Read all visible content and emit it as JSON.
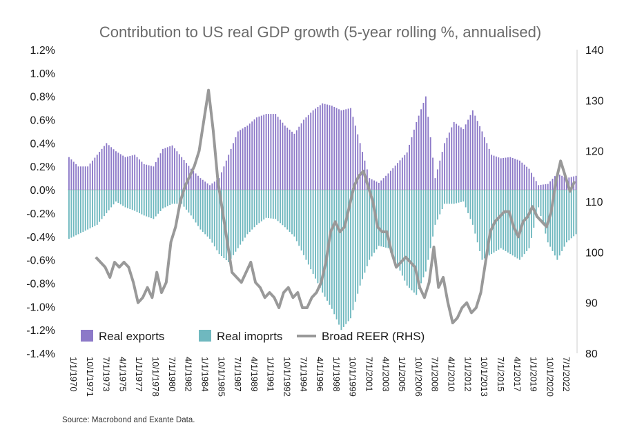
{
  "chart_data": {
    "type": "bar",
    "title": "Contribution to US real GDP growth (5-year rolling %, annualised)",
    "source": "Source: Macrobond and Exante Data.",
    "y_left": {
      "ylim": [
        -1.4,
        1.2
      ],
      "ticks": [
        1.2,
        1.0,
        0.8,
        0.6,
        0.4,
        0.2,
        0.0,
        -0.2,
        -0.4,
        -0.6,
        -0.8,
        -1.0,
        -1.2,
        -1.4
      ],
      "tick_labels": [
        "1.2%",
        "1.0%",
        "0.8%",
        "0.6%",
        "0.4%",
        "0.2%",
        "0.0%",
        "-0.2%",
        "-0.4%",
        "-0.6%",
        "-0.8%",
        "-1.0%",
        "-1.2%",
        "-1.4%"
      ]
    },
    "y_right": {
      "ylim": [
        80,
        140
      ],
      "ticks": [
        140,
        130,
        120,
        110,
        100,
        90,
        80
      ],
      "tick_labels": [
        "140",
        "130",
        "120",
        "110",
        "100",
        "90",
        "80"
      ]
    },
    "x_range": [
      1970.0,
      2024.25
    ],
    "x_ticks": [
      {
        "value": 1970.0,
        "label": "1/1/1970"
      },
      {
        "value": 1971.75,
        "label": "10/1/1971"
      },
      {
        "value": 1973.5,
        "label": "7/1/1973"
      },
      {
        "value": 1975.25,
        "label": "4/1/1975"
      },
      {
        "value": 1977.0,
        "label": "1/1/1977"
      },
      {
        "value": 1978.75,
        "label": "10/1/1978"
      },
      {
        "value": 1980.5,
        "label": "7/1/1980"
      },
      {
        "value": 1982.25,
        "label": "4/1/1982"
      },
      {
        "value": 1984.0,
        "label": "1/1/1984"
      },
      {
        "value": 1985.75,
        "label": "10/1/1985"
      },
      {
        "value": 1987.5,
        "label": "7/1/1987"
      },
      {
        "value": 1989.25,
        "label": "4/1/1989"
      },
      {
        "value": 1991.0,
        "label": "1/1/1991"
      },
      {
        "value": 1992.75,
        "label": "10/1/1992"
      },
      {
        "value": 1994.5,
        "label": "7/1/1994"
      },
      {
        "value": 1996.25,
        "label": "4/1/1996"
      },
      {
        "value": 1998.0,
        "label": "1/1/1998"
      },
      {
        "value": 1999.75,
        "label": "10/1/1999"
      },
      {
        "value": 2001.5,
        "label": "7/1/2001"
      },
      {
        "value": 2003.25,
        "label": "4/1/2003"
      },
      {
        "value": 2005.0,
        "label": "1/1/2005"
      },
      {
        "value": 2006.75,
        "label": "10/1/2006"
      },
      {
        "value": 2008.5,
        "label": "7/1/2008"
      },
      {
        "value": 2010.25,
        "label": "4/1/2010"
      },
      {
        "value": 2012.0,
        "label": "1/1/2012"
      },
      {
        "value": 2013.75,
        "label": "10/1/2013"
      },
      {
        "value": 2015.5,
        "label": "7/1/2015"
      },
      {
        "value": 2017.25,
        "label": "4/1/2017"
      },
      {
        "value": 2019.0,
        "label": "1/1/2019"
      },
      {
        "value": 2020.75,
        "label": "10/1/2020"
      },
      {
        "value": 2022.5,
        "label": "7/1/2022"
      }
    ],
    "series": [
      {
        "name": "Real exports",
        "type": "bar",
        "axis": "left",
        "color": "#8c79c8",
        "points": [
          [
            1970.0,
            0.28
          ],
          [
            1971.0,
            0.2
          ],
          [
            1972.0,
            0.2
          ],
          [
            1973.0,
            0.3
          ],
          [
            1974.0,
            0.4
          ],
          [
            1975.0,
            0.33
          ],
          [
            1976.0,
            0.28
          ],
          [
            1977.0,
            0.3
          ],
          [
            1978.0,
            0.22
          ],
          [
            1979.0,
            0.2
          ],
          [
            1980.0,
            0.35
          ],
          [
            1981.0,
            0.38
          ],
          [
            1982.0,
            0.28
          ],
          [
            1983.0,
            0.18
          ],
          [
            1984.0,
            0.1
          ],
          [
            1985.0,
            0.04
          ],
          [
            1986.0,
            0.1
          ],
          [
            1987.0,
            0.3
          ],
          [
            1988.0,
            0.5
          ],
          [
            1989.0,
            0.55
          ],
          [
            1990.0,
            0.62
          ],
          [
            1991.0,
            0.65
          ],
          [
            1992.0,
            0.65
          ],
          [
            1993.0,
            0.55
          ],
          [
            1994.0,
            0.48
          ],
          [
            1995.0,
            0.6
          ],
          [
            1996.0,
            0.68
          ],
          [
            1997.0,
            0.74
          ],
          [
            1998.0,
            0.72
          ],
          [
            1999.0,
            0.68
          ],
          [
            2000.0,
            0.7
          ],
          [
            2001.0,
            0.4
          ],
          [
            2002.0,
            0.1
          ],
          [
            2003.0,
            0.06
          ],
          [
            2004.0,
            0.14
          ],
          [
            2005.0,
            0.23
          ],
          [
            2006.0,
            0.32
          ],
          [
            2007.0,
            0.58
          ],
          [
            2008.0,
            0.8
          ],
          [
            2009.0,
            0.1
          ],
          [
            2010.0,
            0.4
          ],
          [
            2011.0,
            0.58
          ],
          [
            2012.0,
            0.52
          ],
          [
            2013.0,
            0.68
          ],
          [
            2014.0,
            0.5
          ],
          [
            2015.0,
            0.3
          ],
          [
            2016.0,
            0.27
          ],
          [
            2017.0,
            0.28
          ],
          [
            2018.0,
            0.25
          ],
          [
            2019.0,
            0.18
          ],
          [
            2020.0,
            0.04
          ],
          [
            2021.0,
            0.05
          ],
          [
            2022.0,
            0.14
          ],
          [
            2023.0,
            0.1
          ],
          [
            2024.0,
            0.12
          ]
        ]
      },
      {
        "name": "Real imoprts",
        "type": "bar",
        "axis": "left",
        "color": "#6fb8bf",
        "points": [
          [
            1970.0,
            -0.42
          ],
          [
            1971.0,
            -0.38
          ],
          [
            1972.0,
            -0.34
          ],
          [
            1973.0,
            -0.3
          ],
          [
            1974.0,
            -0.2
          ],
          [
            1975.0,
            -0.1
          ],
          [
            1976.0,
            -0.15
          ],
          [
            1977.0,
            -0.18
          ],
          [
            1978.0,
            -0.22
          ],
          [
            1979.0,
            -0.25
          ],
          [
            1980.0,
            -0.16
          ],
          [
            1981.0,
            -0.12
          ],
          [
            1982.0,
            -0.12
          ],
          [
            1983.0,
            -0.22
          ],
          [
            1984.0,
            -0.34
          ],
          [
            1985.0,
            -0.42
          ],
          [
            1986.0,
            -0.55
          ],
          [
            1987.0,
            -0.62
          ],
          [
            1988.0,
            -0.5
          ],
          [
            1989.0,
            -0.38
          ],
          [
            1990.0,
            -0.3
          ],
          [
            1991.0,
            -0.24
          ],
          [
            1992.0,
            -0.25
          ],
          [
            1993.0,
            -0.32
          ],
          [
            1994.0,
            -0.4
          ],
          [
            1995.0,
            -0.56
          ],
          [
            1996.0,
            -0.72
          ],
          [
            1997.0,
            -0.88
          ],
          [
            1998.0,
            -1.02
          ],
          [
            1999.0,
            -1.2
          ],
          [
            2000.0,
            -1.1
          ],
          [
            2001.0,
            -0.82
          ],
          [
            2002.0,
            -0.6
          ],
          [
            2003.0,
            -0.48
          ],
          [
            2004.0,
            -0.5
          ],
          [
            2005.0,
            -0.65
          ],
          [
            2006.0,
            -0.82
          ],
          [
            2007.0,
            -0.9
          ],
          [
            2008.0,
            -0.7
          ],
          [
            2009.0,
            -0.3
          ],
          [
            2010.0,
            -0.12
          ],
          [
            2011.0,
            -0.12
          ],
          [
            2012.0,
            -0.1
          ],
          [
            2013.0,
            -0.3
          ],
          [
            2014.0,
            -0.6
          ],
          [
            2015.0,
            -0.55
          ],
          [
            2016.0,
            -0.5
          ],
          [
            2017.0,
            -0.55
          ],
          [
            2018.0,
            -0.6
          ],
          [
            2019.0,
            -0.5
          ],
          [
            2020.0,
            -0.15
          ],
          [
            2021.0,
            -0.45
          ],
          [
            2022.0,
            -0.6
          ],
          [
            2023.0,
            -0.45
          ],
          [
            2024.0,
            -0.38
          ]
        ]
      },
      {
        "name": "Broad REER (RHS)",
        "type": "line",
        "axis": "right",
        "color": "#999999",
        "points": [
          [
            1973.0,
            99
          ],
          [
            1973.5,
            98
          ],
          [
            1974.0,
            97
          ],
          [
            1974.5,
            95
          ],
          [
            1975.0,
            98
          ],
          [
            1975.5,
            97
          ],
          [
            1976.0,
            98
          ],
          [
            1976.5,
            97
          ],
          [
            1977.0,
            94
          ],
          [
            1977.5,
            90
          ],
          [
            1978.0,
            91
          ],
          [
            1978.5,
            93
          ],
          [
            1979.0,
            91
          ],
          [
            1979.5,
            96
          ],
          [
            1980.0,
            92
          ],
          [
            1980.5,
            94
          ],
          [
            1981.0,
            102
          ],
          [
            1981.5,
            105
          ],
          [
            1982.0,
            110
          ],
          [
            1982.5,
            113
          ],
          [
            1983.0,
            115
          ],
          [
            1983.5,
            117
          ],
          [
            1984.0,
            120
          ],
          [
            1984.5,
            126
          ],
          [
            1985.0,
            132
          ],
          [
            1985.5,
            124
          ],
          [
            1986.0,
            114
          ],
          [
            1986.5,
            108
          ],
          [
            1987.0,
            102
          ],
          [
            1987.5,
            96
          ],
          [
            1988.0,
            95
          ],
          [
            1988.5,
            94
          ],
          [
            1989.0,
            96
          ],
          [
            1989.5,
            98
          ],
          [
            1990.0,
            94
          ],
          [
            1990.5,
            93
          ],
          [
            1991.0,
            91
          ],
          [
            1991.5,
            92
          ],
          [
            1992.0,
            91
          ],
          [
            1992.5,
            89
          ],
          [
            1993.0,
            92
          ],
          [
            1993.5,
            93
          ],
          [
            1994.0,
            91
          ],
          [
            1994.5,
            92
          ],
          [
            1995.0,
            89
          ],
          [
            1995.5,
            89
          ],
          [
            1996.0,
            91
          ],
          [
            1996.5,
            92
          ],
          [
            1997.0,
            94
          ],
          [
            1997.5,
            98
          ],
          [
            1998.0,
            104
          ],
          [
            1998.5,
            106
          ],
          [
            1999.0,
            104
          ],
          [
            1999.5,
            105
          ],
          [
            2000.0,
            109
          ],
          [
            2000.5,
            113
          ],
          [
            2001.0,
            115
          ],
          [
            2001.5,
            116
          ],
          [
            2002.0,
            113
          ],
          [
            2002.5,
            110
          ],
          [
            2003.0,
            105
          ],
          [
            2003.5,
            104
          ],
          [
            2004.0,
            104
          ],
          [
            2004.5,
            100
          ],
          [
            2005.0,
            97
          ],
          [
            2005.5,
            98
          ],
          [
            2006.0,
            99
          ],
          [
            2006.5,
            98
          ],
          [
            2007.0,
            97
          ],
          [
            2007.5,
            93
          ],
          [
            2008.0,
            91
          ],
          [
            2008.5,
            94
          ],
          [
            2009.0,
            101
          ],
          [
            2009.5,
            93
          ],
          [
            2010.0,
            95
          ],
          [
            2010.5,
            90
          ],
          [
            2011.0,
            86
          ],
          [
            2011.5,
            87
          ],
          [
            2012.0,
            89
          ],
          [
            2012.5,
            90
          ],
          [
            2013.0,
            88
          ],
          [
            2013.5,
            89
          ],
          [
            2014.0,
            92
          ],
          [
            2014.5,
            98
          ],
          [
            2015.0,
            104
          ],
          [
            2015.5,
            106
          ],
          [
            2016.0,
            107
          ],
          [
            2016.5,
            108
          ],
          [
            2017.0,
            108
          ],
          [
            2017.5,
            105
          ],
          [
            2018.0,
            103
          ],
          [
            2018.5,
            106
          ],
          [
            2019.0,
            107
          ],
          [
            2019.5,
            109
          ],
          [
            2020.0,
            107
          ],
          [
            2020.5,
            106
          ],
          [
            2021.0,
            105
          ],
          [
            2021.5,
            108
          ],
          [
            2022.0,
            114
          ],
          [
            2022.5,
            118
          ],
          [
            2023.0,
            115
          ],
          [
            2023.5,
            112
          ],
          [
            2024.0,
            114
          ]
        ]
      }
    ],
    "legend_position": "bottom-left",
    "grid": false
  }
}
